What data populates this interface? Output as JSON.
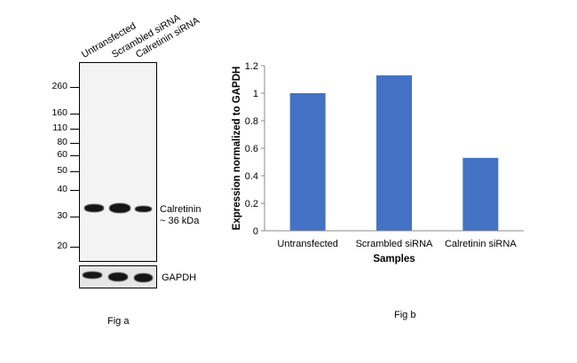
{
  "western_blot": {
    "lanes": [
      "Untransfected",
      "Scrambled siRNA",
      "Calretinin siRNA"
    ],
    "mw_markers": [
      "260",
      "160",
      "110",
      "80",
      "60",
      "50",
      "40",
      "30",
      "20"
    ],
    "band_label_line1": "Calretinin",
    "band_label_line2": "~ 36 kDa",
    "loading_control": "GAPDH",
    "caption": "Fig a"
  },
  "chart_data": {
    "type": "bar",
    "categories": [
      "Untransfected",
      "Scrambled siRNA",
      "Calretinin siRNA"
    ],
    "values": [
      1.0,
      1.13,
      0.53
    ],
    "title": "",
    "xlabel": "Samples",
    "ylabel": "Expression normalized to GAPDH",
    "ylim": [
      0,
      1.2
    ],
    "yticks": [
      "0",
      "0.2",
      "0.4",
      "0.6",
      "0.8",
      "1",
      "1.2"
    ],
    "bar_color": "#4472C4",
    "grid": false,
    "caption": "Fig b"
  }
}
